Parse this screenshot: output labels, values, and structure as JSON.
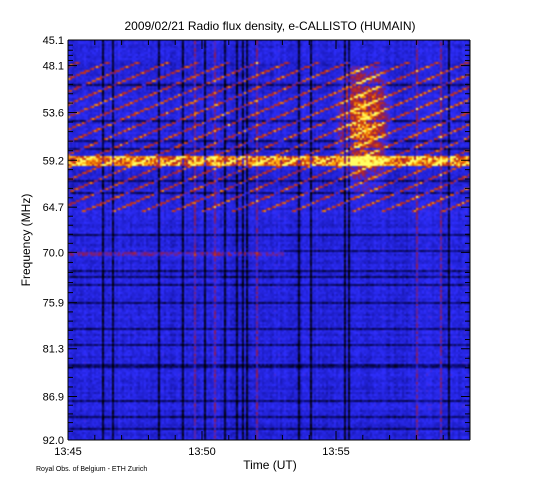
{
  "credit": "Royal Obs. of Belgium - ETH Zurich",
  "chart_data": {
    "type": "heatmap",
    "title": "2009/02/21  Radio flux density, e-CALLISTO (HUMAIN)",
    "xlabel": "Time (UT)",
    "ylabel": "Frequency (MHz)",
    "x_ticks": [
      "13:45",
      "13:50",
      "13:55"
    ],
    "x_range": [
      "13:45",
      "14:00"
    ],
    "y_ticks": [
      "45.1",
      "48.1",
      "53.6",
      "59.2",
      "64.7",
      "70.0",
      "75.9",
      "81.3",
      "86.9",
      "92.0"
    ],
    "y_range": [
      45.1,
      92.0
    ],
    "colormap": [
      "#000000",
      "#0a0a6e",
      "#1e1ec8",
      "#2f2fff",
      "#8a1a5a",
      "#c83214",
      "#ff9600",
      "#ffff64"
    ],
    "features": [
      {
        "name": "drifting bursts",
        "time_range": [
          "13:45",
          "14:00"
        ],
        "freq_range": [
          48.1,
          64.7
        ]
      },
      {
        "name": "flux enhancement",
        "time_range": [
          "13:55",
          "13:57"
        ],
        "freq_range": [
          48.1,
          64.7
        ]
      },
      {
        "name": "horizontal band",
        "time_range": [
          "13:45",
          "14:00"
        ],
        "freq_range": [
          59.2,
          59.2
        ]
      },
      {
        "name": "interference band",
        "time_range": [
          "13:45",
          "13:53"
        ],
        "freq_range": [
          70.0,
          70.0
        ]
      }
    ]
  }
}
